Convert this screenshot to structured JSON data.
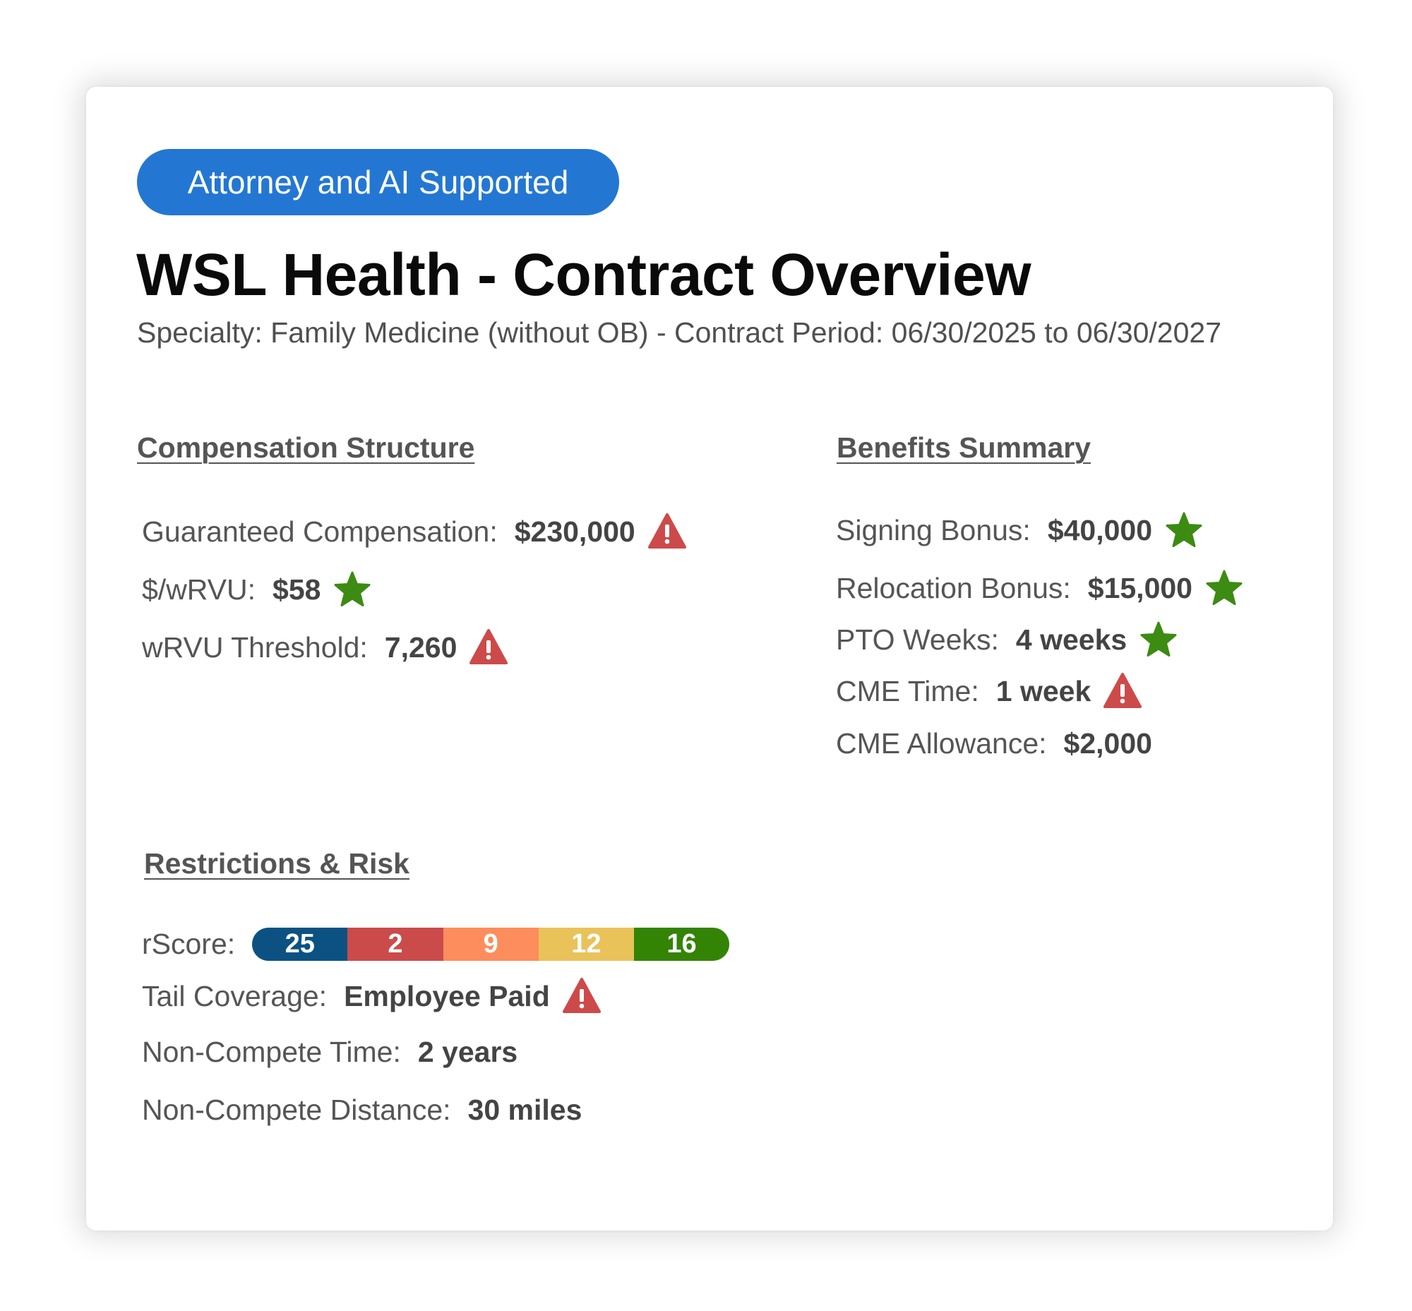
{
  "badge": {
    "label": "Attorney and AI Supported",
    "color": "#2377d3"
  },
  "header": {
    "title": "WSL Health - Contract Overview",
    "subtitle": "Specialty: Family Medicine (without OB) - Contract Period: 06/30/2025 to 06/30/2027"
  },
  "compensation": {
    "heading": "Compensation Structure",
    "items": [
      {
        "label": "Guaranteed Compensation:",
        "value": "$230,000",
        "icon": "warning-icon"
      },
      {
        "label": "$/wRVU:",
        "value": "$58",
        "icon": "star-icon"
      },
      {
        "label": "wRVU Threshold:",
        "value": "7,260",
        "icon": "warning-icon"
      }
    ]
  },
  "benefits": {
    "heading": "Benefits Summary",
    "items": [
      {
        "label": "Signing Bonus:",
        "value": "$40,000",
        "icon": "star-icon"
      },
      {
        "label": "Relocation Bonus:",
        "value": "$15,000",
        "icon": "star-icon"
      },
      {
        "label": "PTO Weeks:",
        "value": "4 weeks",
        "icon": "star-icon"
      },
      {
        "label": "CME Time:",
        "value": "1 week",
        "icon": "warning-icon"
      },
      {
        "label": "CME Allowance:",
        "value": "$2,000",
        "icon": ""
      }
    ]
  },
  "restrictions": {
    "heading": "Restrictions & Risk",
    "rscore": {
      "label": "rScore:",
      "segments": [
        {
          "value": "25",
          "color": "#0b5282"
        },
        {
          "value": "2",
          "color": "#cb4b4b"
        },
        {
          "value": "9",
          "color": "#fd8d5d"
        },
        {
          "value": "12",
          "color": "#eac25a"
        },
        {
          "value": "16",
          "color": "#338405"
        }
      ]
    },
    "items": [
      {
        "label": "Tail Coverage:",
        "value": "Employee Paid",
        "icon": "warning-icon"
      },
      {
        "label": "Non-Compete Time:",
        "value": "2 years",
        "icon": ""
      },
      {
        "label": "Non-Compete Distance:",
        "value": "30 miles",
        "icon": ""
      }
    ]
  },
  "colors": {
    "star": "#3c8b12",
    "warning": "#cd4a4a"
  }
}
